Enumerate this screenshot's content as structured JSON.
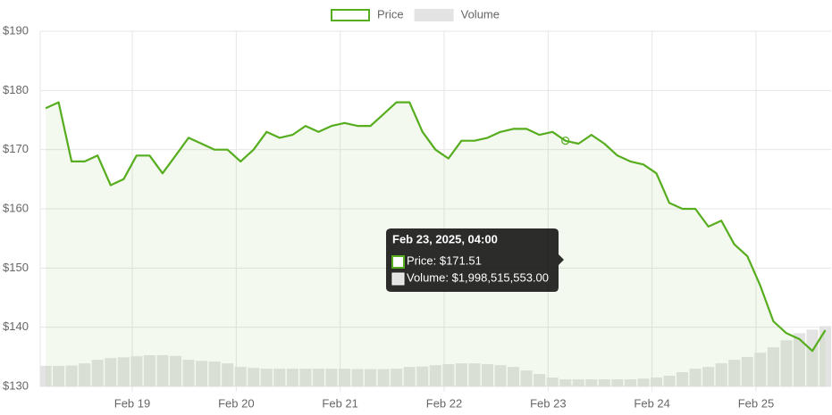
{
  "chart_data": {
    "type": "line",
    "legend": "top",
    "x": [
      "2025-02-18T04:00",
      "2025-02-18T07:00",
      "2025-02-18T10:00",
      "2025-02-18T13:00",
      "2025-02-18T16:00",
      "2025-02-18T19:00",
      "2025-02-18T22:00",
      "2025-02-19T01:00",
      "2025-02-19T04:00",
      "2025-02-19T07:00",
      "2025-02-19T10:00",
      "2025-02-19T13:00",
      "2025-02-19T16:00",
      "2025-02-19T19:00",
      "2025-02-19T22:00",
      "2025-02-20T01:00",
      "2025-02-20T04:00",
      "2025-02-20T07:00",
      "2025-02-20T10:00",
      "2025-02-20T13:00",
      "2025-02-20T16:00",
      "2025-02-20T19:00",
      "2025-02-20T22:00",
      "2025-02-21T01:00",
      "2025-02-21T04:00",
      "2025-02-21T07:00",
      "2025-02-21T10:00",
      "2025-02-21T13:00",
      "2025-02-21T16:00",
      "2025-02-21T19:00",
      "2025-02-21T22:00",
      "2025-02-22T01:00",
      "2025-02-22T04:00",
      "2025-02-22T07:00",
      "2025-02-22T10:00",
      "2025-02-22T13:00",
      "2025-02-22T16:00",
      "2025-02-22T19:00",
      "2025-02-22T22:00",
      "2025-02-23T01:00",
      "2025-02-23T04:00",
      "2025-02-23T07:00",
      "2025-02-23T10:00",
      "2025-02-23T13:00",
      "2025-02-23T16:00",
      "2025-02-23T19:00",
      "2025-02-23T22:00",
      "2025-02-24T01:00",
      "2025-02-24T04:00",
      "2025-02-24T07:00",
      "2025-02-24T10:00",
      "2025-02-24T13:00",
      "2025-02-24T16:00",
      "2025-02-24T19:00",
      "2025-02-24T22:00",
      "2025-02-25T01:00",
      "2025-02-25T04:00",
      "2025-02-25T07:00",
      "2025-02-25T10:00",
      "2025-02-25T13:00",
      "2025-02-25T16:00"
    ],
    "series": [
      {
        "name": "Price",
        "color": "#56ad1e",
        "values": [
          177,
          178,
          168,
          168,
          169,
          164,
          165,
          169,
          169,
          166,
          169,
          172,
          171,
          170,
          170,
          168,
          170,
          173,
          172,
          172.5,
          174,
          173,
          174,
          174.5,
          174,
          174,
          176,
          178,
          178,
          173,
          170,
          168.5,
          171.5,
          171.5,
          172,
          173,
          173.5,
          173.5,
          172.5,
          173,
          171.51,
          171,
          172.5,
          171,
          169,
          168,
          167.5,
          166,
          161,
          160,
          160,
          157,
          158,
          154,
          152,
          147,
          141,
          139,
          138,
          136,
          139.5
        ]
      },
      {
        "name": "Volume",
        "color": "#e3e3e3",
        "axis": "y2",
        "values": [
          5800000000,
          5800000000,
          5900000000,
          6500000000,
          7500000000,
          8000000000,
          8200000000,
          8500000000,
          8800000000,
          8800000000,
          8600000000,
          7500000000,
          7200000000,
          7000000000,
          6500000000,
          5500000000,
          5200000000,
          5000000000,
          5000000000,
          5000000000,
          5000000000,
          5000000000,
          5000000000,
          5000000000,
          4900000000,
          4900000000,
          4900000000,
          5000000000,
          5500000000,
          5600000000,
          6000000000,
          6300000000,
          6500000000,
          6500000000,
          6300000000,
          6000000000,
          5500000000,
          4500000000,
          3500000000,
          2500000000,
          1998515553,
          2000000000,
          2000000000,
          2000000000,
          2000000000,
          2000000000,
          2200000000,
          2500000000,
          3000000000,
          4000000000,
          5000000000,
          5500000000,
          6500000000,
          7500000000,
          8300000000,
          9500000000,
          11000000000,
          13000000000,
          15000000000,
          16000000000,
          17000000000
        ]
      }
    ],
    "xlim": [
      "2025-02-18T02:45",
      "2025-02-25T17:20"
    ],
    "xticks": [
      {
        "value": "2025-02-19T00:00",
        "label": "Feb 19"
      },
      {
        "value": "2025-02-20T00:00",
        "label": "Feb 20"
      },
      {
        "value": "2025-02-21T00:00",
        "label": "Feb 21"
      },
      {
        "value": "2025-02-22T00:00",
        "label": "Feb 22"
      },
      {
        "value": "2025-02-23T00:00",
        "label": "Feb 23"
      },
      {
        "value": "2025-02-24T00:00",
        "label": "Feb 24"
      },
      {
        "value": "2025-02-25T00:00",
        "label": "Feb 25"
      }
    ],
    "ylim": [
      130,
      190
    ],
    "yticks": [
      {
        "value": 130,
        "label": "$130"
      },
      {
        "value": 140,
        "label": "$140"
      },
      {
        "value": 150,
        "label": "$150"
      },
      {
        "value": 160,
        "label": "$160"
      },
      {
        "value": 170,
        "label": "$170"
      },
      {
        "value": 180,
        "label": "$180"
      },
      {
        "value": 190,
        "label": "$190"
      }
    ],
    "y2lim": [
      0,
      100000000000
    ],
    "grid": true,
    "tooltip": {
      "title": "Feb 23, 2025, 04:00",
      "lines": [
        "Price: $171.51",
        "Volume: $1,998,515,553.00"
      ]
    }
  }
}
